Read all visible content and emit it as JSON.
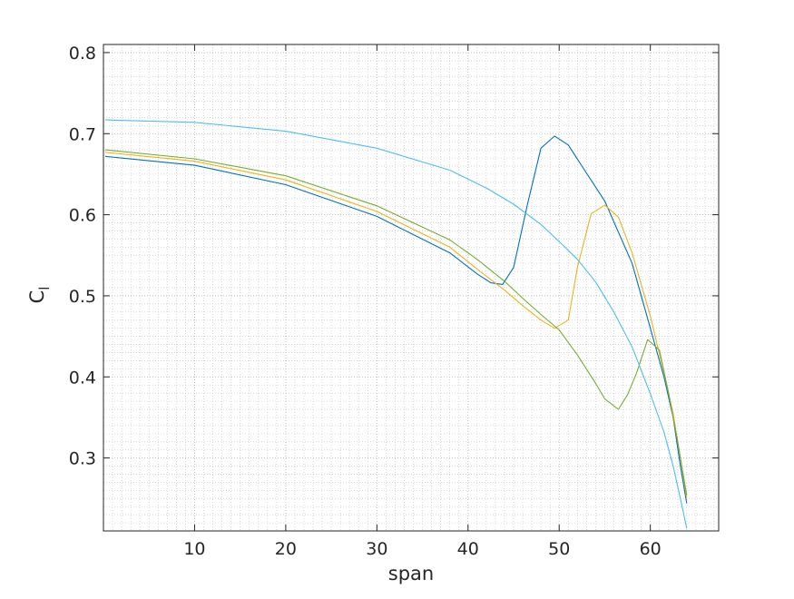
{
  "chart_data": {
    "type": "line",
    "title": "",
    "xlabel": "span",
    "ylabel_main": "C",
    "ylabel_sub": "l",
    "xlim": [
      0,
      67.5
    ],
    "ylim": [
      0.21,
      0.81
    ],
    "xticks": [
      10,
      20,
      30,
      40,
      50,
      60
    ],
    "yticks": [
      0.3,
      0.4,
      0.5,
      0.6,
      0.7,
      0.8
    ],
    "xtick_labels": [
      "10",
      "20",
      "30",
      "40",
      "50",
      "60"
    ],
    "ytick_labels": [
      "0.3",
      "0.4",
      "0.5",
      "0.6",
      "0.7",
      "0.8"
    ],
    "grid": true,
    "minor_grid": true,
    "legend": "none",
    "series": [
      {
        "color": "#0072BD",
        "x": [
          0.2,
          10,
          20,
          30,
          38,
          41,
          42.5,
          43.8,
          45,
          46.5,
          48,
          49.5,
          51,
          52.5,
          55,
          58,
          60,
          61.5,
          62.5,
          63.3,
          64
        ],
        "y": [
          0.672,
          0.661,
          0.637,
          0.598,
          0.553,
          0.527,
          0.516,
          0.514,
          0.535,
          0.612,
          0.682,
          0.697,
          0.686,
          0.66,
          0.617,
          0.54,
          0.46,
          0.4,
          0.35,
          0.29,
          0.244
        ]
      },
      {
        "color": "#EDB120",
        "x": [
          0.2,
          10,
          20,
          30,
          38,
          41,
          44,
          46,
          48,
          49.5,
          51,
          52,
          53.5,
          55,
          56.5,
          58,
          60,
          61.5,
          62.5,
          63.3,
          64
        ],
        "y": [
          0.677,
          0.666,
          0.643,
          0.604,
          0.56,
          0.533,
          0.507,
          0.488,
          0.47,
          0.46,
          0.47,
          0.535,
          0.601,
          0.612,
          0.597,
          0.553,
          0.475,
          0.405,
          0.355,
          0.3,
          0.25
        ]
      },
      {
        "color": "#77AC30",
        "x": [
          0.2,
          10,
          20,
          30,
          38,
          41,
          44,
          46,
          48,
          50,
          52,
          54,
          55,
          56.5,
          57.5,
          58.5,
          59.7,
          61,
          62,
          63,
          64
        ],
        "y": [
          0.68,
          0.669,
          0.648,
          0.611,
          0.569,
          0.545,
          0.518,
          0.497,
          0.477,
          0.458,
          0.427,
          0.392,
          0.373,
          0.36,
          0.378,
          0.405,
          0.446,
          0.433,
          0.38,
          0.32,
          0.254
        ]
      },
      {
        "color": "#4DBEEE",
        "x": [
          0.2,
          10,
          20,
          30,
          38,
          42,
          45,
          48,
          50,
          52,
          54,
          56,
          58,
          60,
          61.5,
          62.5,
          63.3,
          64
        ],
        "y": [
          0.717,
          0.714,
          0.703,
          0.682,
          0.655,
          0.633,
          0.613,
          0.588,
          0.567,
          0.545,
          0.517,
          0.48,
          0.437,
          0.379,
          0.332,
          0.29,
          0.25,
          0.213
        ]
      }
    ]
  }
}
